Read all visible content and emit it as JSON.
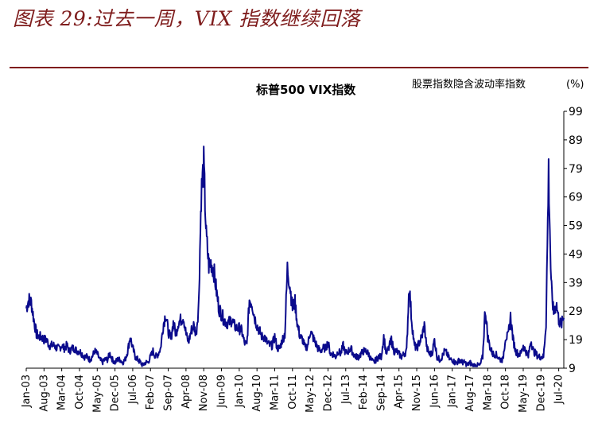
{
  "figure_title": "图表 29:过去一周，VIX 指数继续回落",
  "chart_data": {
    "type": "line",
    "title": "标普500 VIX指数",
    "ylabel": "股票指数隐含波动率指数",
    "yunit": "(%)",
    "ylim": [
      9,
      99
    ],
    "yticks": [
      9,
      19,
      29,
      39,
      49,
      59,
      69,
      79,
      89,
      99
    ],
    "xrange": [
      "2003-01",
      "2020-09"
    ],
    "xtick_labels": [
      "Jan-03",
      "Aug-03",
      "Mar-04",
      "Oct-04",
      "May-05",
      "Dec-05",
      "Jul-06",
      "Feb-07",
      "Sep-07",
      "Apr-08",
      "Nov-08",
      "Jun-09",
      "Jan-10",
      "Aug-10",
      "Mar-11",
      "Oct-11",
      "May-12",
      "Dec-12",
      "Jul-13",
      "Feb-14",
      "Sep-14",
      "Apr-15",
      "Nov-15",
      "Jun-16",
      "Jan-17",
      "Aug-17",
      "Mar-18",
      "Oct-18",
      "May-19",
      "Dec-19",
      "Jul-20"
    ],
    "line_color": "#0a0a8c",
    "axis_side": "right",
    "grid": false,
    "series": [
      {
        "x": [
          "2003-01",
          "2003-02",
          "2003-03",
          "2003-04",
          "2003-05",
          "2003-06",
          "2003-07",
          "2003-08",
          "2003-09",
          "2003-10",
          "2003-11",
          "2003-12",
          "2004-01",
          "2004-02",
          "2004-03",
          "2004-04",
          "2004-05",
          "2004-06",
          "2004-07",
          "2004-08",
          "2004-09",
          "2004-10",
          "2004-11",
          "2004-12",
          "2005-01",
          "2005-02",
          "2005-03",
          "2005-04",
          "2005-05",
          "2005-06",
          "2005-07",
          "2005-08",
          "2005-09",
          "2005-10",
          "2005-11",
          "2005-12",
          "2006-01",
          "2006-02",
          "2006-03",
          "2006-04",
          "2006-05",
          "2006-06",
          "2006-07",
          "2006-08",
          "2006-09",
          "2006-10",
          "2006-11",
          "2006-12",
          "2007-01",
          "2007-02",
          "2007-03",
          "2007-04",
          "2007-05",
          "2007-06",
          "2007-07",
          "2007-08",
          "2007-09",
          "2007-10",
          "2007-11",
          "2007-12",
          "2008-01",
          "2008-02",
          "2008-03",
          "2008-04",
          "2008-05",
          "2008-06",
          "2008-07",
          "2008-08",
          "2008-09",
          "2008-10",
          "2008-11",
          "2008-12",
          "2009-01",
          "2009-02",
          "2009-03",
          "2009-04",
          "2009-05",
          "2009-06",
          "2009-07",
          "2009-08",
          "2009-09",
          "2009-10",
          "2009-11",
          "2009-12",
          "2010-01",
          "2010-02",
          "2010-03",
          "2010-04",
          "2010-05",
          "2010-06",
          "2010-07",
          "2010-08",
          "2010-09",
          "2010-10",
          "2010-11",
          "2010-12",
          "2011-01",
          "2011-02",
          "2011-03",
          "2011-04",
          "2011-05",
          "2011-06",
          "2011-07",
          "2011-08",
          "2011-09",
          "2011-10",
          "2011-11",
          "2011-12",
          "2012-01",
          "2012-02",
          "2012-03",
          "2012-04",
          "2012-05",
          "2012-06",
          "2012-07",
          "2012-08",
          "2012-09",
          "2012-10",
          "2012-11",
          "2012-12",
          "2013-01",
          "2013-02",
          "2013-03",
          "2013-04",
          "2013-05",
          "2013-06",
          "2013-07",
          "2013-08",
          "2013-09",
          "2013-10",
          "2013-11",
          "2013-12",
          "2014-01",
          "2014-02",
          "2014-03",
          "2014-04",
          "2014-05",
          "2014-06",
          "2014-07",
          "2014-08",
          "2014-09",
          "2014-10",
          "2014-11",
          "2014-12",
          "2015-01",
          "2015-02",
          "2015-03",
          "2015-04",
          "2015-05",
          "2015-06",
          "2015-07",
          "2015-08",
          "2015-09",
          "2015-10",
          "2015-11",
          "2015-12",
          "2016-01",
          "2016-02",
          "2016-03",
          "2016-04",
          "2016-05",
          "2016-06",
          "2016-07",
          "2016-08",
          "2016-09",
          "2016-10",
          "2016-11",
          "2016-12",
          "2017-01",
          "2017-02",
          "2017-03",
          "2017-04",
          "2017-05",
          "2017-06",
          "2017-07",
          "2017-08",
          "2017-09",
          "2017-10",
          "2017-11",
          "2017-12",
          "2018-01",
          "2018-02",
          "2018-03",
          "2018-04",
          "2018-05",
          "2018-06",
          "2018-07",
          "2018-08",
          "2018-09",
          "2018-10",
          "2018-11",
          "2018-12",
          "2019-01",
          "2019-02",
          "2019-03",
          "2019-04",
          "2019-05",
          "2019-06",
          "2019-07",
          "2019-08",
          "2019-09",
          "2019-10",
          "2019-11",
          "2019-12",
          "2020-01",
          "2020-02",
          "2020-03",
          "2020-04",
          "2020-05",
          "2020-06",
          "2020-07",
          "2020-08",
          "2020-09"
        ],
        "values": [
          30,
          33,
          32,
          26,
          21,
          20,
          20,
          19,
          19,
          17,
          17,
          17,
          16,
          16,
          17,
          16,
          17,
          15,
          16,
          16,
          15,
          15,
          14,
          13,
          13,
          12,
          13,
          15,
          14,
          12,
          11,
          12,
          12,
          14,
          12,
          11,
          12,
          12,
          11,
          12,
          15,
          20,
          16,
          13,
          12,
          11,
          10,
          11,
          11,
          13,
          15,
          13,
          14,
          16,
          24,
          28,
          22,
          19,
          25,
          21,
          25,
          26,
          27,
          21,
          18,
          22,
          24,
          21,
          31,
          70,
          80,
          55,
          45,
          46,
          43,
          36,
          30,
          28,
          26,
          25,
          25,
          26,
          24,
          23,
          23,
          22,
          18,
          17,
          33,
          32,
          27,
          24,
          22,
          20,
          20,
          18,
          17,
          17,
          20,
          16,
          16,
          19,
          21,
          44,
          38,
          30,
          32,
          24,
          20,
          19,
          16,
          17,
          22,
          20,
          18,
          16,
          15,
          16,
          16,
          18,
          14,
          14,
          13,
          15,
          14,
          17,
          14,
          15,
          16,
          14,
          13,
          13,
          14,
          15,
          15,
          14,
          12,
          11,
          12,
          13,
          13,
          20,
          14,
          16,
          19,
          15,
          15,
          14,
          13,
          14,
          15,
          38,
          26,
          17,
          16,
          18,
          20,
          24,
          16,
          14,
          14,
          19,
          13,
          12,
          13,
          15,
          14,
          12,
          12,
          11,
          11,
          12,
          11,
          11,
          10,
          11,
          10,
          10,
          10,
          10,
          13,
          30,
          20,
          16,
          14,
          14,
          13,
          12,
          12,
          20,
          20,
          27,
          19,
          15,
          14,
          14,
          17,
          15,
          13,
          19,
          15,
          14,
          13,
          13,
          13,
          25,
          78,
          38,
          28,
          32,
          26,
          24,
          27
        ]
      }
    ]
  }
}
